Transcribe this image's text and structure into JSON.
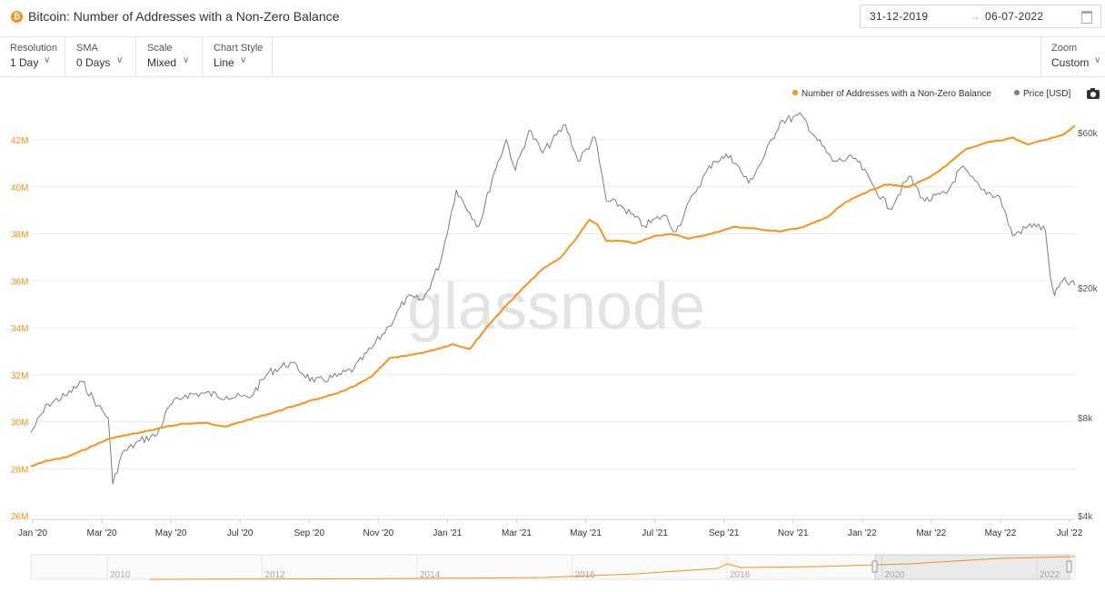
{
  "header": {
    "title": "Bitcoin: Number of Addresses with a Non-Zero Balance",
    "date_start": "31-12-2019",
    "date_arrow": "→",
    "date_end": "06-07-2022"
  },
  "controls": [
    {
      "label": "Resolution",
      "value": "1 Day"
    },
    {
      "label": "SMA",
      "value": "0 Days"
    },
    {
      "label": "Scale",
      "value": "Mixed"
    },
    {
      "label": "Chart Style",
      "value": "Line"
    }
  ],
  "zoom": {
    "label": "Zoom",
    "value": "Custom"
  },
  "chevron": "∨",
  "legend": [
    {
      "name": "Number of Addresses with a Non-Zero Balance",
      "color": "#f7931a"
    },
    {
      "name": "Price [USD]",
      "color": "#7d7d7d"
    }
  ],
  "watermark": "glassnode",
  "navigator": {
    "years": [
      "2010",
      "2012",
      "2014",
      "2016",
      "2018",
      "2020",
      "2022"
    ]
  },
  "chart_data": {
    "type": "line",
    "x_tick_labels": [
      "Jan '20",
      "Mar '20",
      "May '20",
      "Jul '20",
      "Sep '20",
      "Nov '20",
      "Jan '21",
      "Mar '21",
      "May '21",
      "Jul '21",
      "Sep '21",
      "Nov '21",
      "Jan '22",
      "Mar '22",
      "May '22",
      "Jul '22"
    ],
    "y_left": {
      "ticks": [
        26,
        28,
        30,
        32,
        34,
        36,
        38,
        40,
        42
      ],
      "tick_labels": [
        "26M",
        "28M",
        "30M",
        "32M",
        "34M",
        "36M",
        "38M",
        "40M",
        "42M"
      ],
      "range": [
        26,
        42.5
      ],
      "scale": "linear"
    },
    "y_right": {
      "ticks": [
        4000,
        8000,
        20000,
        60000
      ],
      "tick_labels": [
        "$4k",
        "$8k",
        "$20k",
        "$60k"
      ],
      "scale": "log"
    },
    "grid": true,
    "legend_position": "top-right",
    "series": [
      {
        "name": "Number of Addresses with a Non-Zero Balance",
        "axis": "left",
        "unit": "millions",
        "points": [
          [
            "2019-12-31",
            28.1
          ],
          [
            "2020-01-15",
            28.35
          ],
          [
            "2020-02-01",
            28.5
          ],
          [
            "2020-02-20",
            28.9
          ],
          [
            "2020-03-10",
            29.3
          ],
          [
            "2020-04-01",
            29.5
          ],
          [
            "2020-04-20",
            29.7
          ],
          [
            "2020-05-10",
            29.9
          ],
          [
            "2020-06-01",
            29.95
          ],
          [
            "2020-06-20",
            29.8
          ],
          [
            "2020-07-10",
            30.1
          ],
          [
            "2020-08-01",
            30.4
          ],
          [
            "2020-08-20",
            30.7
          ],
          [
            "2020-09-10",
            31.0
          ],
          [
            "2020-09-25",
            31.2
          ],
          [
            "2020-10-10",
            31.5
          ],
          [
            "2020-10-25",
            31.9
          ],
          [
            "2020-11-10",
            32.7
          ],
          [
            "2020-11-25",
            32.8
          ],
          [
            "2020-12-15",
            33.0
          ],
          [
            "2021-01-05",
            33.3
          ],
          [
            "2021-01-20",
            33.1
          ],
          [
            "2021-02-05",
            34.1
          ],
          [
            "2021-02-20",
            34.9
          ],
          [
            "2021-03-10",
            35.8
          ],
          [
            "2021-03-25",
            36.5
          ],
          [
            "2021-04-10",
            37.0
          ],
          [
            "2021-04-25",
            37.9
          ],
          [
            "2021-05-05",
            38.6
          ],
          [
            "2021-05-12",
            38.4
          ],
          [
            "2021-05-20",
            37.7
          ],
          [
            "2021-06-01",
            37.7
          ],
          [
            "2021-06-15",
            37.6
          ],
          [
            "2021-07-01",
            37.9
          ],
          [
            "2021-07-15",
            38.0
          ],
          [
            "2021-08-01",
            37.8
          ],
          [
            "2021-08-20",
            38.0
          ],
          [
            "2021-09-10",
            38.3
          ],
          [
            "2021-09-30",
            38.2
          ],
          [
            "2021-10-20",
            38.1
          ],
          [
            "2021-11-10",
            38.3
          ],
          [
            "2021-11-30",
            38.7
          ],
          [
            "2021-12-15",
            39.3
          ],
          [
            "2021-12-31",
            39.7
          ],
          [
            "2022-01-20",
            40.1
          ],
          [
            "2022-02-10",
            40.0
          ],
          [
            "2022-02-28",
            40.4
          ],
          [
            "2022-03-15",
            40.9
          ],
          [
            "2022-04-01",
            41.6
          ],
          [
            "2022-04-20",
            41.9
          ],
          [
            "2022-05-05",
            42.0
          ],
          [
            "2022-05-12",
            42.1
          ],
          [
            "2022-05-25",
            41.8
          ],
          [
            "2022-06-10",
            42.0
          ],
          [
            "2022-06-25",
            42.2
          ],
          [
            "2022-07-06",
            42.6
          ]
        ]
      },
      {
        "name": "Price [USD]",
        "axis": "right",
        "unit": "USD",
        "points": [
          [
            "2019-12-31",
            7200
          ],
          [
            "2020-01-15",
            8800
          ],
          [
            "2020-02-01",
            9400
          ],
          [
            "2020-02-14",
            10300
          ],
          [
            "2020-02-28",
            8700
          ],
          [
            "2020-03-08",
            8000
          ],
          [
            "2020-03-12",
            5000
          ],
          [
            "2020-03-20",
            6200
          ],
          [
            "2020-04-05",
            6800
          ],
          [
            "2020-04-20",
            7100
          ],
          [
            "2020-05-01",
            8700
          ],
          [
            "2020-05-15",
            9400
          ],
          [
            "2020-06-01",
            9500
          ],
          [
            "2020-06-20",
            9300
          ],
          [
            "2020-07-10",
            9200
          ],
          [
            "2020-07-27",
            11000
          ],
          [
            "2020-08-15",
            11800
          ],
          [
            "2020-09-05",
            10300
          ],
          [
            "2020-09-25",
            10700
          ],
          [
            "2020-10-10",
            11300
          ],
          [
            "2020-10-25",
            13000
          ],
          [
            "2020-11-10",
            15300
          ],
          [
            "2020-11-25",
            18600
          ],
          [
            "2020-12-10",
            18400
          ],
          [
            "2020-12-25",
            24000
          ],
          [
            "2021-01-08",
            40000
          ],
          [
            "2021-01-20",
            34000
          ],
          [
            "2021-01-28",
            31000
          ],
          [
            "2021-02-10",
            45000
          ],
          [
            "2021-02-21",
            57000
          ],
          [
            "2021-03-01",
            46000
          ],
          [
            "2021-03-13",
            61000
          ],
          [
            "2021-03-25",
            52000
          ],
          [
            "2021-04-14",
            63500
          ],
          [
            "2021-04-25",
            49000
          ],
          [
            "2021-05-10",
            58000
          ],
          [
            "2021-05-20",
            37000
          ],
          [
            "2021-06-01",
            36000
          ],
          [
            "2021-06-22",
            31000
          ],
          [
            "2021-07-10",
            33500
          ],
          [
            "2021-07-20",
            29800
          ],
          [
            "2021-08-05",
            39000
          ],
          [
            "2021-08-22",
            49000
          ],
          [
            "2021-09-06",
            51000
          ],
          [
            "2021-09-22",
            42000
          ],
          [
            "2021-10-05",
            50000
          ],
          [
            "2021-10-20",
            65000
          ],
          [
            "2021-11-08",
            67500
          ],
          [
            "2021-11-20",
            58000
          ],
          [
            "2021-12-05",
            49000
          ],
          [
            "2021-12-25",
            50000
          ],
          [
            "2022-01-10",
            41000
          ],
          [
            "2022-01-24",
            35000
          ],
          [
            "2022-02-10",
            44000
          ],
          [
            "2022-02-24",
            37000
          ],
          [
            "2022-03-15",
            39000
          ],
          [
            "2022-03-28",
            47000
          ],
          [
            "2022-04-15",
            40000
          ],
          [
            "2022-05-01",
            38000
          ],
          [
            "2022-05-12",
            29000
          ],
          [
            "2022-05-31",
            31500
          ],
          [
            "2022-06-10",
            30000
          ],
          [
            "2022-06-14",
            22000
          ],
          [
            "2022-06-18",
            19000
          ],
          [
            "2022-06-25",
            21000
          ],
          [
            "2022-07-06",
            20400
          ]
        ]
      }
    ]
  }
}
